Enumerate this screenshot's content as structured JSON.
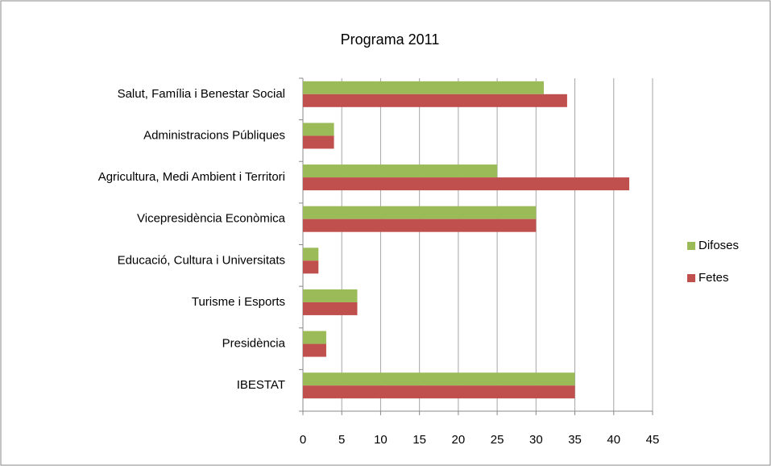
{
  "chart_data": {
    "type": "bar",
    "orientation": "horizontal",
    "title": "Programa 2011",
    "categories": [
      "Salut, Família i Benestar Social",
      "Administracions Públiques",
      "Agricultura, Medi Ambient i Territori",
      "Vicepresidència Econòmica",
      "Educació, Cultura i Universitats",
      "Turisme i Esports",
      "Presidència",
      "IBESTAT"
    ],
    "series": [
      {
        "name": "Difoses",
        "color": "#9bbb59",
        "values": [
          31,
          4,
          25,
          30,
          2,
          7,
          3,
          35
        ]
      },
      {
        "name": "Fetes",
        "color": "#c0504d",
        "values": [
          34,
          4,
          42,
          30,
          2,
          7,
          3,
          35
        ]
      }
    ],
    "xlim": [
      0,
      45
    ],
    "xticks": [
      0,
      5,
      10,
      15,
      20,
      25,
      30,
      35,
      40,
      45
    ],
    "grid": true,
    "legend": "right"
  }
}
